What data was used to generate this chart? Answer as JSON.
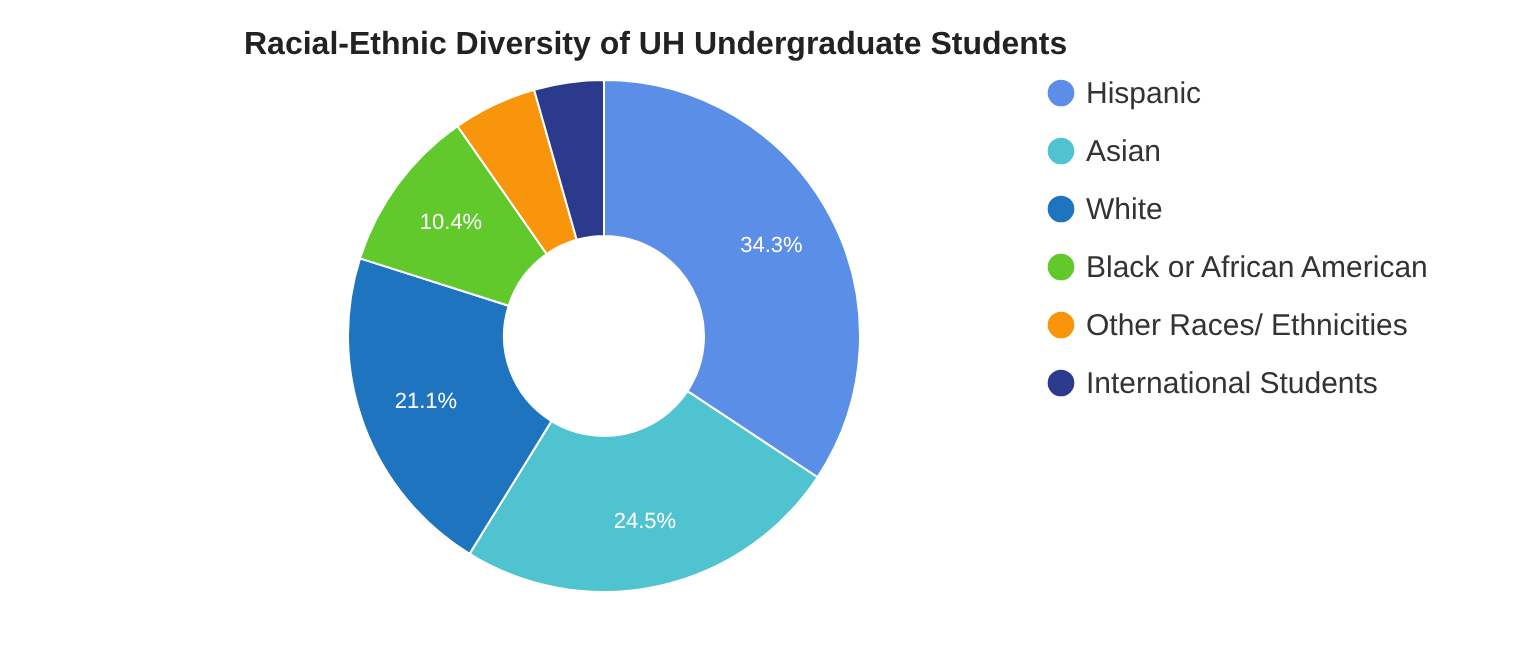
{
  "chart_data": {
    "type": "donut",
    "title": "Racial-Ethnic Diversity of UH Undergraduate Students",
    "categories": [
      "Hispanic",
      "Asian",
      "White",
      "Black or African American",
      "Other Races/ Ethnicities",
      "International Students"
    ],
    "values": [
      34.3,
      24.5,
      21.1,
      10.4,
      5.3,
      4.4
    ],
    "colors": [
      "#5b8ee6",
      "#4fc3d0",
      "#1f74c0",
      "#62c92c",
      "#f8950b",
      "#2b3a8c"
    ],
    "value_labels": [
      "34.3%",
      "24.5%",
      "21.1%",
      "10.4%",
      null,
      null
    ],
    "legend": "right"
  }
}
